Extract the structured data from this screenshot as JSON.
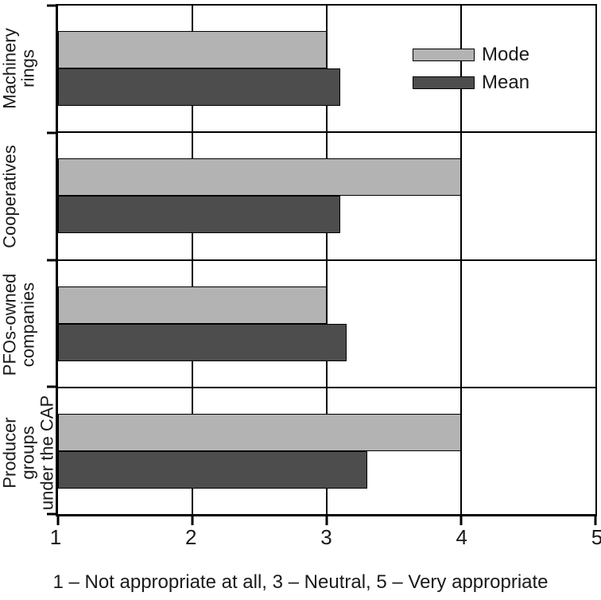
{
  "chart_data": {
    "type": "bar",
    "orientation": "horizontal",
    "title": "",
    "xlabel": "",
    "ylabel": "",
    "categories": [
      "Machinery rings",
      "Cooperatives",
      "PFOs-owned companies",
      "Producer groups under the CAP"
    ],
    "category_label_lines": [
      [
        "Machinery",
        "rings"
      ],
      [
        "Cooperatives"
      ],
      [
        "PFOs-owned",
        "companies"
      ],
      [
        "Producer groups",
        "under the CAP"
      ]
    ],
    "series": [
      {
        "name": "Mode",
        "color": "#b3b3b3",
        "values": [
          3,
          4,
          3,
          4
        ]
      },
      {
        "name": "Mean",
        "color": "#4d4d4d",
        "values": [
          3.1,
          3.1,
          3.15,
          3.3
        ]
      }
    ],
    "xlim": [
      1,
      5
    ],
    "xticks": [
      "1",
      "2",
      "3",
      "4",
      "5"
    ],
    "grid": "vertical-on",
    "legend_position": "top-right",
    "caption": "1 – Not appropriate at all, 3 – Neutral, 5 – Very appropriate",
    "frame_color": "#000000",
    "background_color": "#ffffff"
  }
}
